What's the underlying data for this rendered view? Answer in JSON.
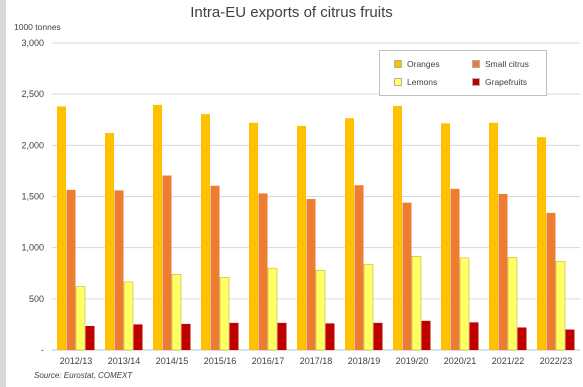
{
  "chart_data": {
    "type": "bar",
    "title": "Intra-EU exports of citrus fruits",
    "unit_label": "1000 tonnes",
    "source": "Source: Eurostat, COMEXT",
    "categories": [
      "2012/13",
      "2013/14",
      "2014/15",
      "2015/16",
      "2016/17",
      "2017/18",
      "2018/19",
      "2019/20",
      "2020/21",
      "2021/22",
      "2022/23"
    ],
    "ylim": [
      0,
      3000
    ],
    "yticks": [
      0,
      500,
      1000,
      1500,
      2000,
      2500,
      3000
    ],
    "ytick_labels": [
      "-",
      "500",
      "1,000",
      "1,500",
      "2,000",
      "2,500",
      "3,000"
    ],
    "grid": true,
    "legend_position": "top-right",
    "series": [
      {
        "name": "Oranges",
        "color": "#FFC000",
        "values": [
          2380,
          2120,
          2395,
          2305,
          2220,
          2190,
          2265,
          2385,
          2215,
          2220,
          2080
        ]
      },
      {
        "name": "Small citrus",
        "color": "#ED7D31",
        "values": [
          1565,
          1560,
          1705,
          1605,
          1530,
          1475,
          1610,
          1440,
          1575,
          1525,
          1340
        ]
      },
      {
        "name": "Lemons",
        "color": "#FFFF66",
        "values": [
          620,
          665,
          740,
          710,
          800,
          780,
          835,
          915,
          900,
          905,
          865
        ]
      },
      {
        "name": "Grapefruits",
        "color": "#C00000",
        "values": [
          235,
          250,
          255,
          265,
          265,
          260,
          265,
          285,
          270,
          220,
          200
        ]
      }
    ]
  }
}
